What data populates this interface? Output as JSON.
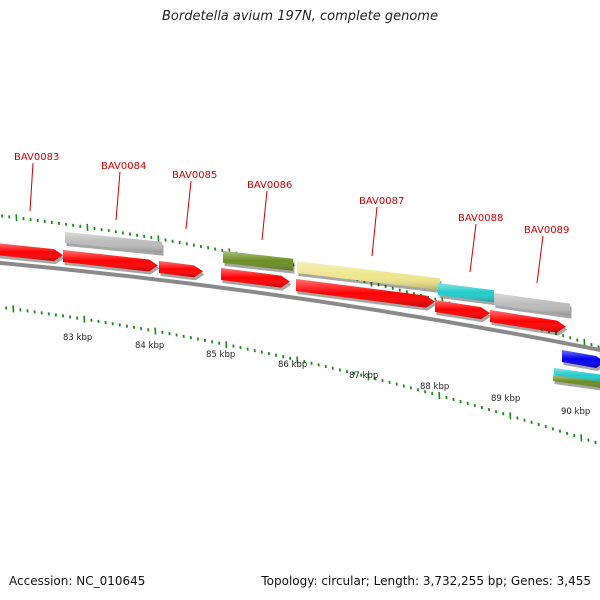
{
  "title": "Bordetella avium 197N, complete genome",
  "footer": {
    "accession": "Accession: NC_010645",
    "summary": "Topology: circular; Length: 3,732,255 bp; Genes: 3,455"
  },
  "gene_labels": [
    "BAV0083",
    "BAV0084",
    "BAV0085",
    "BAV0086",
    "BAV0087",
    "BAV0088",
    "BAV0089"
  ],
  "kbp_labels": [
    "83 kbp",
    "84 kbp",
    "85 kbp",
    "86 kbp",
    "87 kbp",
    "88 kbp",
    "89 kbp",
    "90 kbp"
  ],
  "colors": {
    "red": "#ff0000",
    "gray": "#bbbbbb",
    "olive": "#6b8e23",
    "khaki": "#f0e68c",
    "cyan": "#22cccc",
    "blue": "#0000ee",
    "label": "#cc0000",
    "tick": "#1a8a1a",
    "backbone": "#8a8a8a"
  }
}
